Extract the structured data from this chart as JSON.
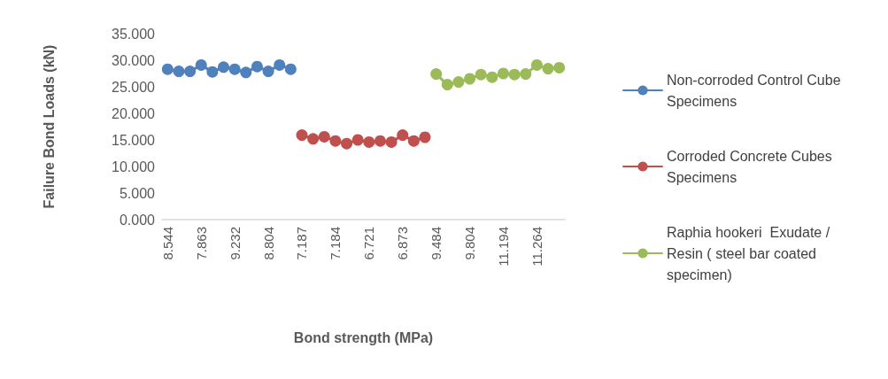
{
  "chart_data": {
    "type": "line",
    "categories": [
      "8.544",
      null,
      null,
      "7.863",
      null,
      null,
      "9.232",
      null,
      null,
      "8.804",
      null,
      null,
      "7.187",
      null,
      null,
      "7.184",
      null,
      null,
      "6.721",
      null,
      null,
      "6.873",
      null,
      null,
      "9.484",
      null,
      null,
      "9.804",
      null,
      null,
      "11.194",
      null,
      null,
      "11.264",
      null,
      null
    ],
    "series": [
      {
        "name": "Non-corroded Control Cube Specimens",
        "color": "#4f81bd",
        "values": [
          28.3,
          27.9,
          27.9,
          29.1,
          27.8,
          28.7,
          28.3,
          27.7,
          28.8,
          27.9,
          29.1,
          28.3,
          null,
          null,
          null,
          null,
          null,
          null,
          null,
          null,
          null,
          null,
          null,
          null,
          null,
          null,
          null,
          null,
          null,
          null,
          null,
          null,
          null,
          null,
          null,
          null
        ]
      },
      {
        "name": "Corroded Concrete Cubes Specimens",
        "color": "#c0504d",
        "values": [
          null,
          null,
          null,
          null,
          null,
          null,
          null,
          null,
          null,
          null,
          null,
          null,
          15.9,
          15.2,
          15.6,
          14.8,
          14.3,
          15.0,
          14.6,
          14.8,
          14.6,
          15.9,
          14.8,
          15.5,
          null,
          null,
          null,
          null,
          null,
          null,
          null,
          null,
          null,
          null,
          null,
          null
        ]
      },
      {
        "name": "Raphia hookeri  Exudate / Resin ( steel bar coated specimen)",
        "color": "#9bbb59",
        "values": [
          null,
          null,
          null,
          null,
          null,
          null,
          null,
          null,
          null,
          null,
          null,
          null,
          null,
          null,
          null,
          null,
          null,
          null,
          null,
          null,
          null,
          null,
          null,
          null,
          27.4,
          25.4,
          25.9,
          26.5,
          27.3,
          26.8,
          27.5,
          27.3,
          27.4,
          29.1,
          28.4,
          28.6
        ]
      }
    ],
    "xlabel": "Bond strength (MPa)",
    "ylabel": "Failure Bond Loads (kN)",
    "ylim": [
      0,
      35
    ],
    "yticks": [
      {
        "value": 0,
        "label": "0.000"
      },
      {
        "value": 5,
        "label": "5.000"
      },
      {
        "value": 10,
        "label": "10.000"
      },
      {
        "value": 15,
        "label": "15.000"
      },
      {
        "value": 20,
        "label": "20.000"
      },
      {
        "value": 25,
        "label": "25.000"
      },
      {
        "value": 30,
        "label": "30.000"
      },
      {
        "value": 35,
        "label": "35.000"
      }
    ],
    "grid": false,
    "legend": "right",
    "marker": "circle",
    "line_style": "solid"
  }
}
